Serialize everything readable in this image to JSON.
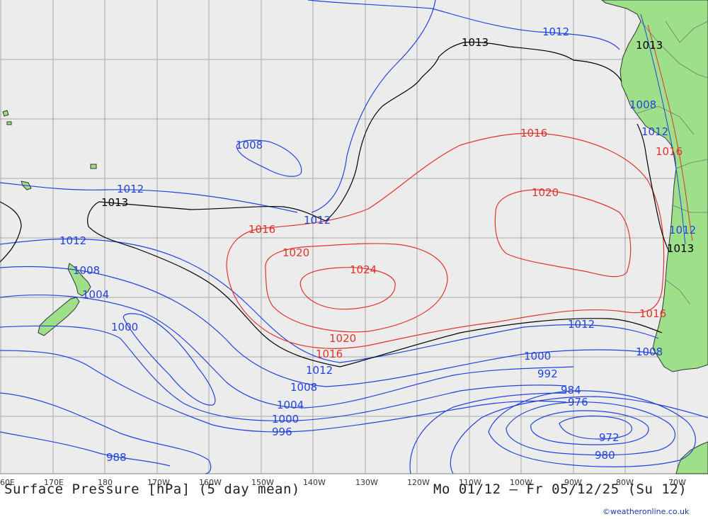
{
  "title": "Surface Pressure [hPa] (5 day mean)",
  "date_range": "Mo 01/12 — Fr 05/12/25 (Su 12)",
  "credit": "©weatheronline.co.uk",
  "colors": {
    "ocean": "#ececec",
    "land": "#9ee08a",
    "grid": "#a9a9a9",
    "low_isobar": "#2244dd",
    "high_isobar": "#e0332a",
    "mid_isobar": "#000000",
    "coast": "#333333"
  },
  "longitude_labels": [
    "60E",
    "170E",
    "180",
    "170W",
    "160W",
    "150W",
    "140W",
    "130W",
    "120W",
    "110W",
    "100W",
    "90W",
    "80W",
    "70W"
  ],
  "isobar_labels": {
    "low_1012_top": "1012",
    "mid_1013_top": "1013",
    "low_1008_center": "1008",
    "low_1012_left": "1012",
    "mid_1013_left": "1013",
    "low_1012_center": "1012",
    "high_1016_center": "1016",
    "high_1020_center": "1020",
    "high_1024": "1024",
    "high_1016_upper": "1016",
    "high_1020_right": "1020",
    "low_1012_nz": "1012",
    "low_1008_nz": "1008",
    "low_1004_nz": "1004",
    "low_1000_west": "1000",
    "high_1020_lower": "1020",
    "high_1016_lower": "1016",
    "low_1012_south": "1012",
    "low_1008_south": "1008",
    "low_1004_south": "1004",
    "low_1000_south": "1000",
    "low_996_south": "996",
    "low_988_sw": "988",
    "low_1012_se": "1012",
    "low_1000_se": "1000",
    "low_992_se": "992",
    "low_984_se": "984",
    "low_976_se": "976",
    "low_972_se": "972",
    "low_980_se": "980",
    "low_1008_chile_south": "1008",
    "high_1016_chile": "1016",
    "low_1013_andes": "1013",
    "low_1008_peru": "1008",
    "low_1012_peru": "1012",
    "high_1016_peru": "1016",
    "low_1012_chile": "1012",
    "mid_1013_chile": "1013"
  }
}
